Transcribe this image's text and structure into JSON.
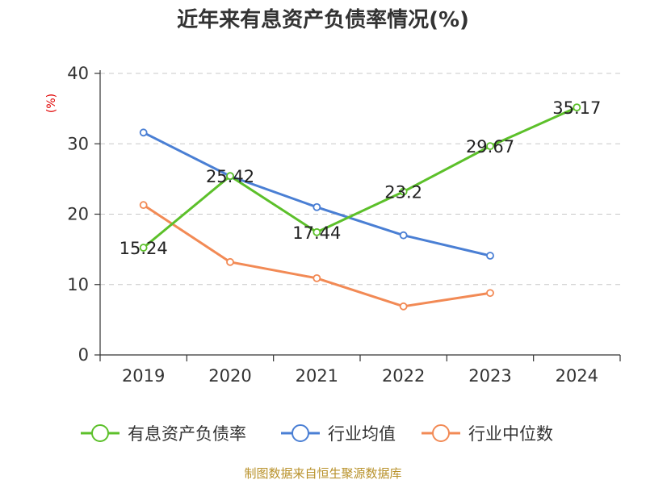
{
  "chart_data": {
    "type": "line",
    "title": "近年来有息资产负债率情况(%)",
    "ylabel": "(%)",
    "xlabel": "",
    "categories": [
      "2019",
      "2020",
      "2021",
      "2022",
      "2023",
      "2024"
    ],
    "ylim": [
      0,
      40
    ],
    "yticks": [
      0,
      10,
      20,
      30,
      40
    ],
    "grid": true,
    "legend_position": "bottom",
    "series": [
      {
        "name": "有息资产负债率",
        "color": "#5cc02a",
        "values": [
          15.24,
          25.42,
          17.44,
          23.2,
          29.67,
          35.17
        ],
        "labels": [
          "15.24",
          "25.42",
          "17.44",
          "23.2",
          "29.67",
          "35.17"
        ]
      },
      {
        "name": "行业均值",
        "color": "#4a7fd4",
        "values": [
          31.6,
          25.4,
          21.0,
          17.0,
          14.1,
          null
        ]
      },
      {
        "name": "行业中位数",
        "color": "#f28a55",
        "values": [
          21.3,
          13.2,
          10.9,
          6.9,
          8.8,
          null
        ]
      }
    ]
  },
  "source": "制图数据来自恒生聚源数据库"
}
